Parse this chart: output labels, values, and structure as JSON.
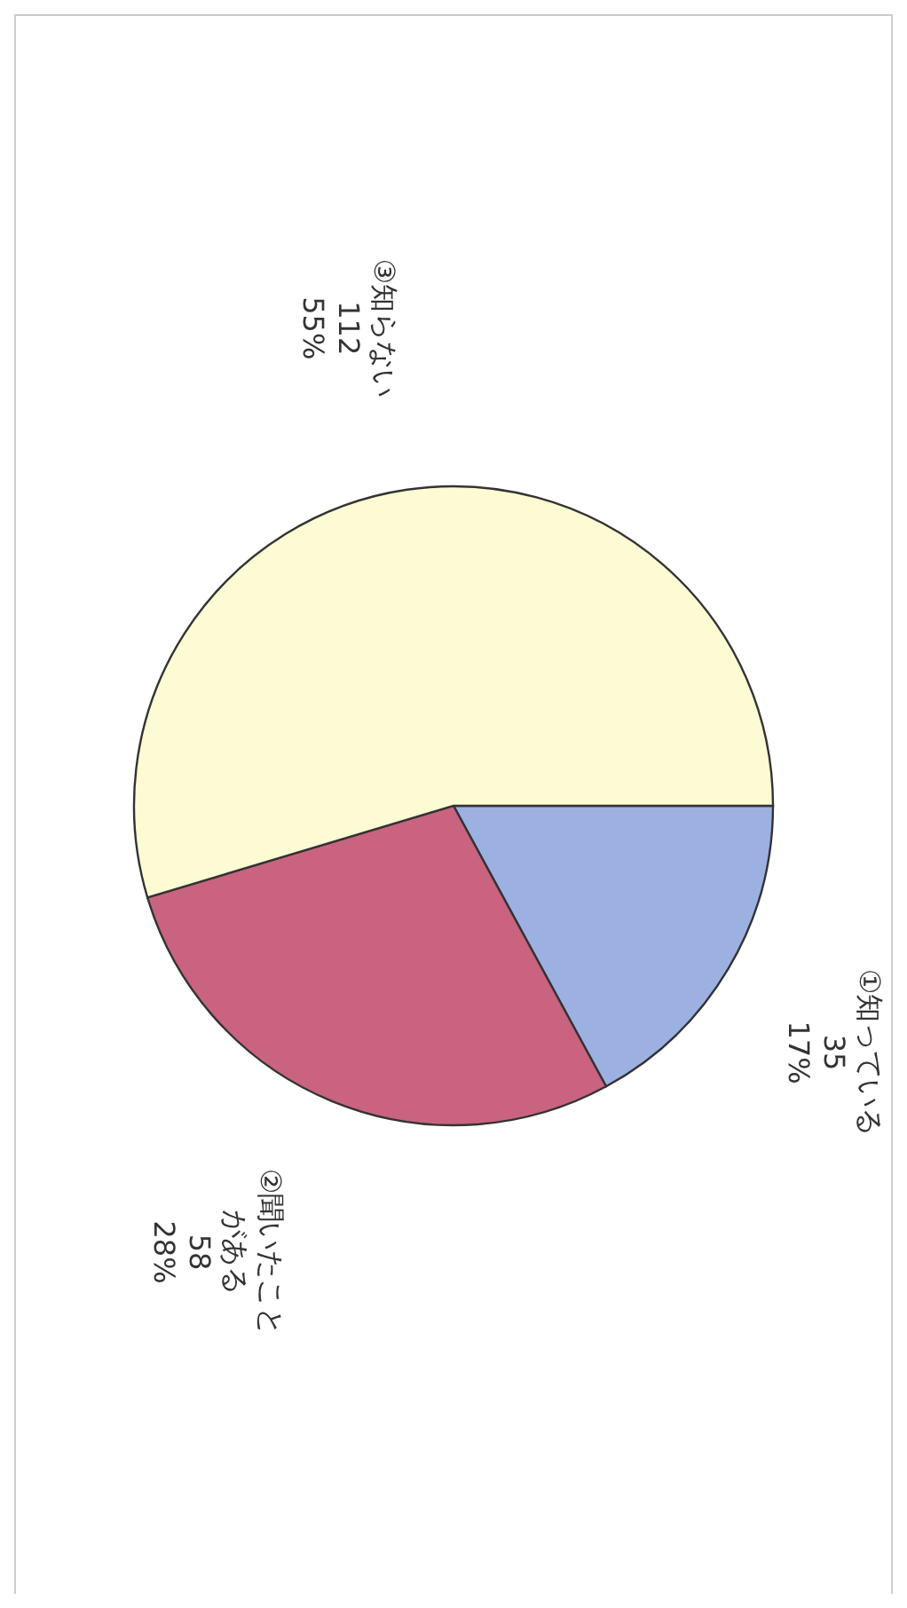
{
  "chart_data": {
    "type": "pie",
    "categories": [
      "①知っている",
      "②聞いたことがある",
      "③知らない"
    ],
    "values": [
      35,
      58,
      112
    ],
    "value_labels": [
      "35\n17%",
      "58\n28%",
      "112\n55%"
    ],
    "colors": [
      "#9db0e2",
      "#c9637f",
      "#fdfbd3"
    ],
    "legend": false
  }
}
